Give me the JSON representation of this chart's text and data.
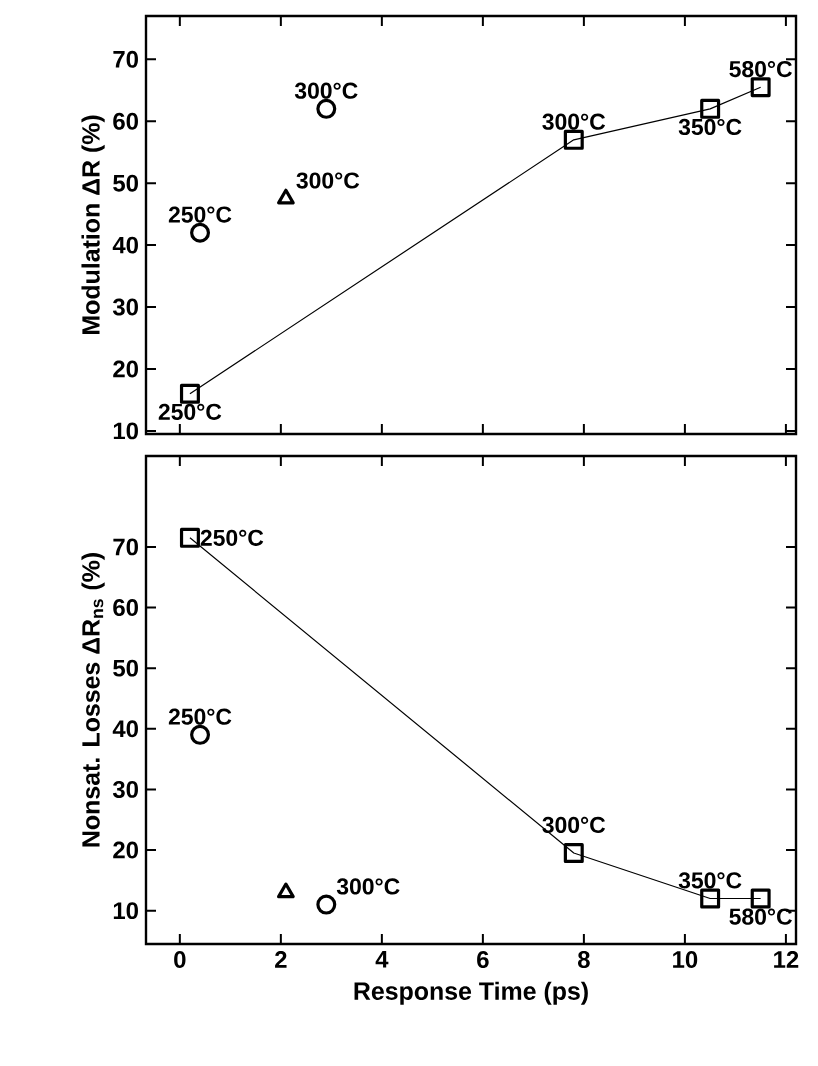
{
  "chart_data": [
    {
      "type": "line",
      "ylabel": "Modulation ΔR (%)",
      "xlim": [
        -0.67,
        12.2
      ],
      "ylim": [
        9.5,
        77
      ],
      "xticks": [
        0,
        2,
        4,
        6,
        8,
        10,
        12
      ],
      "yticks": [
        10,
        20,
        30,
        40,
        50,
        60,
        70
      ],
      "tick_labels": "y",
      "series": [
        {
          "marker": "square",
          "color": "#000000",
          "x": [
            0.2,
            7.8,
            10.5,
            11.5
          ],
          "values": [
            16,
            57,
            62,
            65.5
          ]
        },
        {
          "type": "scatter",
          "marker": "circle",
          "color": "#000000",
          "x": [
            0.4,
            2.9
          ],
          "values": [
            42,
            62
          ]
        },
        {
          "type": "scatter",
          "marker": "triangle",
          "color": "#000000",
          "x": [
            2.1
          ],
          "values": [
            47.5
          ]
        }
      ],
      "annotations": [
        {
          "text": "250°C",
          "x": 0.2,
          "y": 16
        },
        {
          "text": "250°C",
          "x": 0.4,
          "y": 42
        },
        {
          "text": "300°C",
          "x": 2.9,
          "y": 62
        },
        {
          "text": "300°C",
          "x": 2.1,
          "y": 47.5
        },
        {
          "text": "300°C",
          "x": 7.8,
          "y": 57
        },
        {
          "text": "350°C",
          "x": 10.5,
          "y": 62
        },
        {
          "text": "580°C",
          "x": 11.5,
          "y": 65.5
        }
      ]
    },
    {
      "type": "line",
      "xlabel": "Response Time (ps)",
      "ylabel": "Nonsat. Losses ΔR$_{ns}$ (%)",
      "xlim": [
        -0.67,
        12.2
      ],
      "ylim": [
        4.5,
        85
      ],
      "xticks": [
        0,
        2,
        4,
        6,
        8,
        10,
        12
      ],
      "yticks": [
        10,
        20,
        30,
        40,
        50,
        60,
        70
      ],
      "series": [
        {
          "marker": "square",
          "color": "#000000",
          "x": [
            0.2,
            7.8,
            10.5,
            11.5
          ],
          "values": [
            71.5,
            19.5,
            12,
            12
          ]
        },
        {
          "type": "scatter",
          "marker": "circle",
          "color": "#000000",
          "x": [
            0.4,
            2.9
          ],
          "values": [
            39,
            11
          ]
        },
        {
          "type": "scatter",
          "marker": "triangle",
          "color": "#000000",
          "x": [
            2.1
          ],
          "values": [
            13
          ]
        }
      ],
      "annotations": [
        {
          "text": "250°C",
          "x": 0.2,
          "y": 71.5
        },
        {
          "text": "250°C",
          "x": 0.4,
          "y": 39
        },
        {
          "text": "300°C",
          "x": 2.9,
          "y": 11
        },
        {
          "text": "300°C",
          "x": 7.8,
          "y": 19.5
        },
        {
          "text": "350°C",
          "x": 10.5,
          "y": 12
        },
        {
          "text": "580°C",
          "x": 11.5,
          "y": 12
        }
      ]
    }
  ]
}
